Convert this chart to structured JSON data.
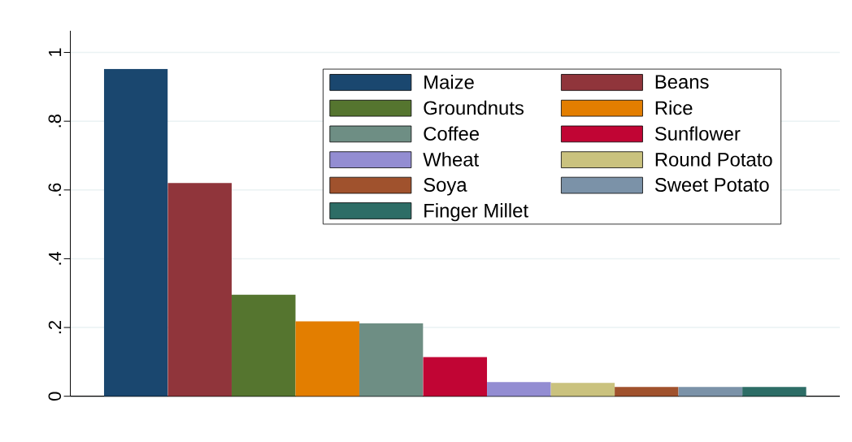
{
  "chart_data": {
    "type": "bar",
    "categories": [
      null
    ],
    "series": [
      {
        "name": "Maize",
        "color": "#1a476f",
        "values": [
          0.952
        ]
      },
      {
        "name": "Beans",
        "color": "#90353b",
        "values": [
          0.62
        ]
      },
      {
        "name": "Groundnuts",
        "color": "#55752f",
        "values": [
          0.295
        ]
      },
      {
        "name": "Rice",
        "color": "#e37e00",
        "values": [
          0.218
        ]
      },
      {
        "name": "Coffee",
        "color": "#6e8e84",
        "values": [
          0.212
        ]
      },
      {
        "name": "Sunflower",
        "color": "#c10534",
        "values": [
          0.114
        ]
      },
      {
        "name": "Wheat",
        "color": "#938dd2",
        "values": [
          0.041
        ]
      },
      {
        "name": "Round Potato",
        "color": "#cac27e",
        "values": [
          0.039
        ]
      },
      {
        "name": "Soya",
        "color": "#a0522d",
        "values": [
          0.027
        ]
      },
      {
        "name": "Sweet Potato",
        "color": "#7b92a8",
        "values": [
          0.027
        ]
      },
      {
        "name": "Finger Millet",
        "color": "#2d6d66",
        "values": [
          0.027
        ]
      }
    ],
    "ylim": [
      0,
      1.063
    ],
    "yticks": [
      0,
      {
        "value": 0.2,
        "label": ".2"
      },
      {
        "value": 0.4,
        "label": ".4"
      },
      {
        "value": 0.6,
        "label": ".6"
      },
      {
        "value": 0.8,
        "label": ".8"
      },
      1
    ],
    "grid": "y",
    "legend": "top right"
  }
}
